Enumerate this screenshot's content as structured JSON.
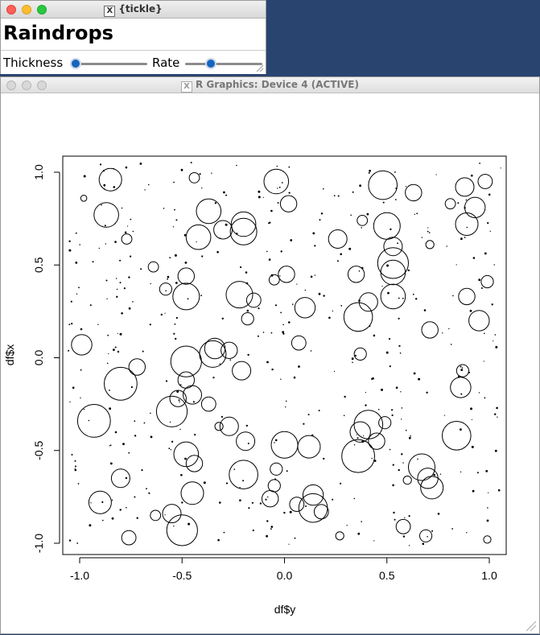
{
  "tk_window": {
    "title": "{tickle}",
    "x_icon": "X",
    "heading": "Raindrops",
    "thickness_label": "Thickness",
    "rate_label": "Rate",
    "thickness_level": 0.0,
    "rate_level": 0.3,
    "traffic_lights": [
      "#fe5f57",
      "#febc2e",
      "#28c840"
    ],
    "knob_color": "#1565c0"
  },
  "r_window": {
    "title": "R Graphics: Device 4 (ACTIVE)",
    "x_icon": "X"
  },
  "chart_data": {
    "type": "scatter",
    "xlabel": "df$y",
    "ylabel": "df$x",
    "xlim": [
      -1.0,
      1.0
    ],
    "ylim": [
      -1.0,
      1.0
    ],
    "xticks": [
      "-1.0",
      "-0.5",
      "0.0",
      "0.5",
      "1.0"
    ],
    "yticks": [
      "-1.0",
      "-0.5",
      "0.0",
      "0.5",
      "1.0"
    ],
    "marker": "open-circle",
    "circles": [
      {
        "x": -0.85,
        "y": 0.96,
        "r": 0.055
      },
      {
        "x": -0.04,
        "y": 0.95,
        "r": 0.06
      },
      {
        "x": 0.48,
        "y": 0.93,
        "r": 0.07
      },
      {
        "x": 0.88,
        "y": 0.92,
        "r": 0.045
      },
      {
        "x": 0.63,
        "y": 0.89,
        "r": 0.04
      },
      {
        "x": 0.93,
        "y": 0.81,
        "r": 0.05
      },
      {
        "x": -0.87,
        "y": 0.77,
        "r": 0.06
      },
      {
        "x": -0.37,
        "y": 0.79,
        "r": 0.06
      },
      {
        "x": -0.2,
        "y": 0.72,
        "r": 0.06
      },
      {
        "x": -0.2,
        "y": 0.68,
        "r": 0.065
      },
      {
        "x": -0.42,
        "y": 0.65,
        "r": 0.06
      },
      {
        "x": -0.3,
        "y": 0.69,
        "r": 0.045
      },
      {
        "x": 0.5,
        "y": 0.71,
        "r": 0.065
      },
      {
        "x": 0.89,
        "y": 0.72,
        "r": 0.055
      },
      {
        "x": 0.26,
        "y": 0.64,
        "r": 0.045
      },
      {
        "x": 0.53,
        "y": 0.6,
        "r": 0.045
      },
      {
        "x": 0.53,
        "y": 0.51,
        "r": 0.075
      },
      {
        "x": 0.53,
        "y": 0.46,
        "r": 0.06
      },
      {
        "x": -0.48,
        "y": 0.44,
        "r": 0.04
      },
      {
        "x": -0.48,
        "y": 0.33,
        "r": 0.065
      },
      {
        "x": -0.22,
        "y": 0.34,
        "r": 0.065
      },
      {
        "x": -0.15,
        "y": 0.31,
        "r": 0.035
      },
      {
        "x": 0.01,
        "y": 0.45,
        "r": 0.04
      },
      {
        "x": 0.1,
        "y": 0.27,
        "r": 0.05
      },
      {
        "x": 0.36,
        "y": 0.22,
        "r": 0.07
      },
      {
        "x": 0.41,
        "y": 0.3,
        "r": 0.045
      },
      {
        "x": 0.53,
        "y": 0.33,
        "r": 0.06
      },
      {
        "x": 0.89,
        "y": 0.33,
        "r": 0.04
      },
      {
        "x": 0.95,
        "y": 0.2,
        "r": 0.05
      },
      {
        "x": 0.35,
        "y": 0.45,
        "r": 0.04
      },
      {
        "x": -0.99,
        "y": 0.07,
        "r": 0.05
      },
      {
        "x": -0.48,
        "y": -0.02,
        "r": 0.075
      },
      {
        "x": -0.35,
        "y": 0.02,
        "r": 0.065
      },
      {
        "x": -0.34,
        "y": 0.05,
        "r": 0.05
      },
      {
        "x": -0.27,
        "y": 0.04,
        "r": 0.04
      },
      {
        "x": -0.21,
        "y": -0.07,
        "r": 0.045
      },
      {
        "x": -0.8,
        "y": -0.14,
        "r": 0.08
      },
      {
        "x": -0.72,
        "y": -0.05,
        "r": 0.04
      },
      {
        "x": -0.48,
        "y": -0.12,
        "r": 0.04
      },
      {
        "x": -0.45,
        "y": -0.2,
        "r": 0.045
      },
      {
        "x": -0.55,
        "y": -0.29,
        "r": 0.075
      },
      {
        "x": -0.52,
        "y": -0.22,
        "r": 0.04
      },
      {
        "x": -0.37,
        "y": -0.25,
        "r": 0.035
      },
      {
        "x": -0.27,
        "y": -0.37,
        "r": 0.045
      },
      {
        "x": -0.93,
        "y": -0.34,
        "r": 0.08
      },
      {
        "x": 0.41,
        "y": -0.36,
        "r": 0.07
      },
      {
        "x": 0.37,
        "y": -0.4,
        "r": 0.05
      },
      {
        "x": 0.45,
        "y": -0.45,
        "r": 0.04
      },
      {
        "x": 0.36,
        "y": -0.53,
        "r": 0.08
      },
      {
        "x": 0.0,
        "y": -0.47,
        "r": 0.065
      },
      {
        "x": 0.12,
        "y": -0.48,
        "r": 0.055
      },
      {
        "x": -0.19,
        "y": -0.45,
        "r": 0.045
      },
      {
        "x": -0.48,
        "y": -0.52,
        "r": 0.06
      },
      {
        "x": -0.44,
        "y": -0.57,
        "r": 0.04
      },
      {
        "x": 0.84,
        "y": -0.42,
        "r": 0.07
      },
      {
        "x": 0.86,
        "y": -0.16,
        "r": 0.05
      },
      {
        "x": 0.67,
        "y": -0.59,
        "r": 0.065
      },
      {
        "x": 0.72,
        "y": -0.7,
        "r": 0.055
      },
      {
        "x": 0.7,
        "y": -0.65,
        "r": 0.05
      },
      {
        "x": -0.45,
        "y": -0.73,
        "r": 0.055
      },
      {
        "x": -0.2,
        "y": -0.63,
        "r": 0.07
      },
      {
        "x": 0.14,
        "y": -0.81,
        "r": 0.07
      },
      {
        "x": 0.14,
        "y": -0.74,
        "r": 0.05
      },
      {
        "x": 0.18,
        "y": -0.83,
        "r": 0.035
      },
      {
        "x": -0.9,
        "y": -0.78,
        "r": 0.055
      },
      {
        "x": -0.8,
        "y": -0.65,
        "r": 0.045
      },
      {
        "x": -0.55,
        "y": -0.84,
        "r": 0.045
      },
      {
        "x": -0.5,
        "y": -0.93,
        "r": 0.075
      },
      {
        "x": -0.76,
        "y": -0.97,
        "r": 0.035
      },
      {
        "x": 0.58,
        "y": -0.91,
        "r": 0.035
      },
      {
        "x": 0.69,
        "y": -0.96,
        "r": 0.03
      },
      {
        "x": 0.06,
        "y": -0.79,
        "r": 0.035
      },
      {
        "x": -0.07,
        "y": -0.76,
        "r": 0.04
      },
      {
        "x": -0.04,
        "y": -0.6,
        "r": 0.03
      },
      {
        "x": 0.07,
        "y": 0.08,
        "r": 0.035
      },
      {
        "x": 0.71,
        "y": 0.15,
        "r": 0.04
      },
      {
        "x": 0.87,
        "y": -0.07,
        "r": 0.03
      },
      {
        "x": 0.49,
        "y": -0.35,
        "r": 0.03
      },
      {
        "x": -0.18,
        "y": 0.21,
        "r": 0.03
      },
      {
        "x": -0.05,
        "y": 0.42,
        "r": 0.025
      },
      {
        "x": 0.37,
        "y": 0.02,
        "r": 0.03
      },
      {
        "x": 0.6,
        "y": -0.66,
        "r": 0.02
      },
      {
        "x": -0.58,
        "y": 0.37,
        "r": 0.03
      },
      {
        "x": 0.99,
        "y": 0.41,
        "r": 0.03
      },
      {
        "x": -0.64,
        "y": 0.49,
        "r": 0.025
      },
      {
        "x": -0.77,
        "y": 0.64,
        "r": 0.025
      },
      {
        "x": 0.98,
        "y": 0.95,
        "r": 0.035
      },
      {
        "x": 0.71,
        "y": 0.61,
        "r": 0.02
      },
      {
        "x": 0.02,
        "y": 0.83,
        "r": 0.04
      },
      {
        "x": -0.44,
        "y": 0.97,
        "r": 0.025
      },
      {
        "x": 0.81,
        "y": 0.83,
        "r": 0.025
      },
      {
        "x": 0.38,
        "y": 0.74,
        "r": 0.025
      },
      {
        "x": -0.98,
        "y": 0.86,
        "r": 0.015
      },
      {
        "x": -0.05,
        "y": -0.69,
        "r": 0.03
      },
      {
        "x": -0.32,
        "y": -0.37,
        "r": 0.02
      },
      {
        "x": -0.63,
        "y": -0.85,
        "r": 0.025
      },
      {
        "x": 0.27,
        "y": -0.96,
        "r": 0.02
      },
      {
        "x": 0.99,
        "y": -0.98,
        "r": 0.018
      }
    ]
  }
}
